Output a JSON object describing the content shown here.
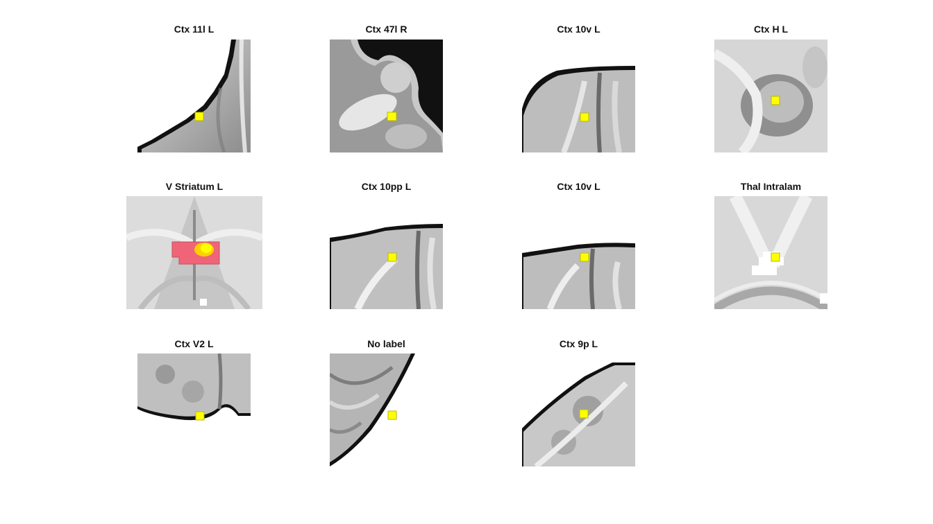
{
  "figure": {
    "panels": [
      {
        "title": "Ctx 11l L"
      },
      {
        "title": "Ctx 47l R"
      },
      {
        "title": "Ctx 10v L"
      },
      {
        "title": "Ctx H L"
      },
      {
        "title": "V Striatum L"
      },
      {
        "title": "Ctx 10pp L"
      },
      {
        "title": "Ctx 10v L"
      },
      {
        "title": "Thal Intralam"
      },
      {
        "title": "Ctx V2 L"
      },
      {
        "title": "No label"
      },
      {
        "title": "Ctx 9p L"
      }
    ],
    "colors": {
      "marker": "#ffff00",
      "marker_border": "#b8b800",
      "cluster": "#f06478",
      "brain_background": "#d4d4d4",
      "edge": "#111111"
    }
  }
}
